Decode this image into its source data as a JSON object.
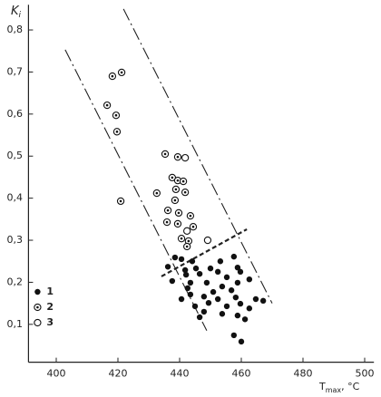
{
  "chart_data": {
    "type": "scatter",
    "ylabel": {
      "main": "K",
      "sub": "i"
    },
    "xlabel": {
      "main": "T",
      "sub": "max",
      "rest": ", °C"
    },
    "xlim": [
      391,
      503
    ],
    "xticks": [
      400,
      420,
      440,
      460,
      480,
      500
    ],
    "ylim": [
      0.01,
      0.86
    ],
    "yticks": [
      {
        "value": 0.1,
        "label": "0,1"
      },
      {
        "value": 0.2,
        "label": "0,2"
      },
      {
        "value": 0.3,
        "label": "0,3"
      },
      {
        "value": 0.4,
        "label": "0,4"
      },
      {
        "value": 0.5,
        "label": "0,5"
      },
      {
        "value": 0.6,
        "label": "0,6"
      },
      {
        "value": 0.7,
        "label": "0,7"
      },
      {
        "value": 0.8,
        "label": "0,8"
      }
    ],
    "legend": "lower left",
    "series": [
      {
        "name": "1",
        "marker": "filled",
        "color": "#111111",
        "x": [
          438.5,
          440.6,
          444.1,
          436.2,
          441.8,
          445.3,
          450.0,
          453.2,
          457.6,
          458.8,
          442.1,
          446.5,
          452.4,
          455.3,
          459.7,
          437.6,
          443.5,
          448.8,
          453.8,
          458.8,
          442.6,
          450.9,
          456.8,
          462.6,
          443.5,
          447.9,
          452.4,
          458.2,
          464.7,
          467.1,
          445.0,
          449.4,
          455.3,
          459.7,
          462.6,
          447.9,
          453.8,
          458.8,
          461.2,
          446.5,
          457.6,
          460.0,
          440.6
        ],
        "values": [
          0.259,
          0.255,
          0.25,
          0.237,
          0.229,
          0.233,
          0.233,
          0.25,
          0.261,
          0.235,
          0.218,
          0.22,
          0.225,
          0.212,
          0.225,
          0.203,
          0.199,
          0.199,
          0.19,
          0.199,
          0.186,
          0.177,
          0.181,
          0.207,
          0.171,
          0.166,
          0.16,
          0.164,
          0.16,
          0.156,
          0.143,
          0.151,
          0.143,
          0.149,
          0.138,
          0.13,
          0.125,
          0.121,
          0.112,
          0.117,
          0.074,
          0.059,
          0.16
        ]
      },
      {
        "name": "2",
        "marker": "dotted",
        "color": "#111111",
        "x": [
          418.2,
          421.2,
          416.5,
          419.4,
          419.7,
          435.3,
          439.4,
          420.9,
          432.6,
          437.6,
          439.4,
          441.2,
          438.8,
          441.8,
          438.5,
          436.2,
          439.7,
          443.5,
          435.9,
          439.4,
          444.4,
          440.6,
          442.9,
          442.4
        ],
        "values": [
          0.69,
          0.699,
          0.621,
          0.597,
          0.558,
          0.505,
          0.498,
          0.393,
          0.412,
          0.449,
          0.442,
          0.44,
          0.421,
          0.414,
          0.395,
          0.371,
          0.365,
          0.358,
          0.343,
          0.339,
          0.332,
          0.304,
          0.298,
          0.285
        ]
      },
      {
        "name": "3",
        "marker": "open",
        "color": "#111111",
        "x": [
          441.8,
          442.4,
          449.1
        ],
        "values": [
          0.496,
          0.322,
          0.3
        ]
      }
    ],
    "lines": [
      {
        "style": "long-dash",
        "x": [
          402.9,
          448.8
        ],
        "y": [
          0.753,
          0.085
        ]
      },
      {
        "style": "long-dash",
        "x": [
          421.8,
          470.0
        ],
        "y": [
          0.85,
          0.15
        ]
      },
      {
        "style": "short-dash",
        "x": [
          434.1,
          461.8
        ],
        "y": [
          0.214,
          0.326
        ]
      }
    ]
  }
}
